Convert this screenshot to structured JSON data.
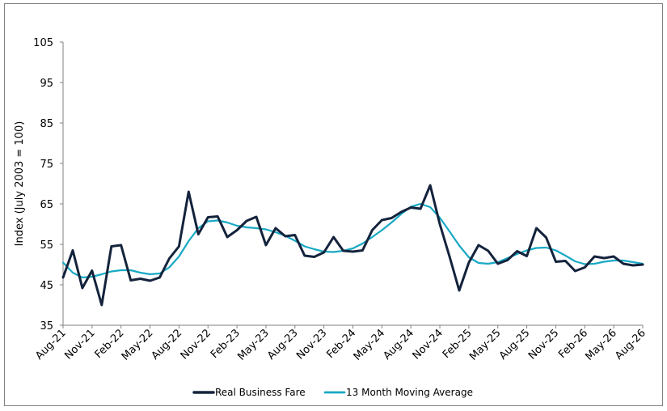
{
  "chart_data": {
    "type": "line",
    "title": "",
    "xlabel": "",
    "ylabel": "Index (July 2003 = 100)",
    "ylim": [
      35,
      105
    ],
    "yticks": [
      35,
      45,
      55,
      65,
      75,
      85,
      95,
      105
    ],
    "grid": false,
    "legend_position": "bottom",
    "x": [
      "Aug-21",
      "Sep-21",
      "Oct-21",
      "Nov-21",
      "Dec-21",
      "Jan-22",
      "Feb-22",
      "Mar-22",
      "Apr-22",
      "May-22",
      "Jun-22",
      "Jul-22",
      "Aug-22",
      "Sep-22",
      "Oct-22",
      "Nov-22",
      "Dec-22",
      "Jan-23",
      "Feb-23",
      "Mar-23",
      "Apr-23",
      "May-23",
      "Jun-23",
      "Jul-23",
      "Aug-23",
      "Sep-23",
      "Oct-23",
      "Nov-23",
      "Dec-23",
      "Jan-24",
      "Feb-24",
      "Mar-24",
      "Apr-24",
      "May-24",
      "Jun-24",
      "Jul-24",
      "Aug-24",
      "Sep-24",
      "Oct-24",
      "Nov-24",
      "Dec-24",
      "Jan-25",
      "Feb-25",
      "Mar-25",
      "Apr-25",
      "May-25",
      "Jun-25",
      "Jul-25",
      "Aug-25",
      "Sep-25",
      "Oct-25",
      "Nov-25",
      "Dec-25",
      "Jan-26",
      "Feb-26",
      "Mar-26",
      "Apr-26",
      "May-26",
      "Jun-26",
      "Jul-26",
      "Aug-26"
    ],
    "x_tick_labels": [
      "Aug-21",
      "Nov-21",
      "Feb-22",
      "May-22",
      "Aug-22",
      "Nov-22",
      "Feb-23",
      "May-23",
      "Aug-23",
      "Nov-23",
      "Feb-24",
      "May-24",
      "Aug-24",
      "Nov-24",
      "Feb-25",
      "May-25",
      "Aug-25",
      "Nov-25",
      "Feb-26",
      "May-26",
      "Aug-26"
    ],
    "series": [
      {
        "name": "Real Business Fare",
        "color": "#14233c",
        "values": [
          46.8,
          53.5,
          44.2,
          48.5,
          40.0,
          54.5,
          54.8,
          46.1,
          46.5,
          46.0,
          46.8,
          51.5,
          54.5,
          68.0,
          57.5,
          61.7,
          61.9,
          56.8,
          58.5,
          60.8,
          61.8,
          54.8,
          59.0,
          57.0,
          57.3,
          52.2,
          51.9,
          53.0,
          56.8,
          53.4,
          53.2,
          53.5,
          58.5,
          61.0,
          61.5,
          63.0,
          64.1,
          63.8,
          69.6,
          60.0,
          52.0,
          43.6,
          50.5,
          54.8,
          53.4,
          50.2,
          51.1,
          53.3,
          52.1,
          59.0,
          56.7,
          50.7,
          50.9,
          48.4,
          49.3,
          52.0,
          51.6,
          52.0,
          50.2,
          49.8,
          50.0
        ]
      },
      {
        "name": "13 Month Moving Average",
        "color": "#19a9c4",
        "values": [
          50.5,
          48.0,
          46.8,
          47.0,
          47.6,
          48.3,
          48.6,
          48.6,
          48.0,
          47.6,
          47.8,
          49.3,
          52.0,
          55.8,
          59.0,
          60.7,
          60.9,
          60.4,
          59.6,
          59.2,
          59.0,
          58.7,
          58.0,
          57.1,
          55.9,
          54.5,
          53.8,
          53.2,
          53.1,
          53.4,
          54.0,
          55.2,
          56.8,
          58.5,
          60.4,
          62.5,
          64.3,
          65.0,
          64.2,
          61.6,
          58.2,
          54.7,
          51.8,
          50.4,
          50.2,
          50.6,
          51.6,
          52.6,
          53.5,
          54.1,
          54.2,
          53.5,
          52.2,
          50.8,
          50.1,
          50.2,
          50.7,
          51.0,
          51.0,
          50.6,
          50.2
        ]
      }
    ]
  }
}
